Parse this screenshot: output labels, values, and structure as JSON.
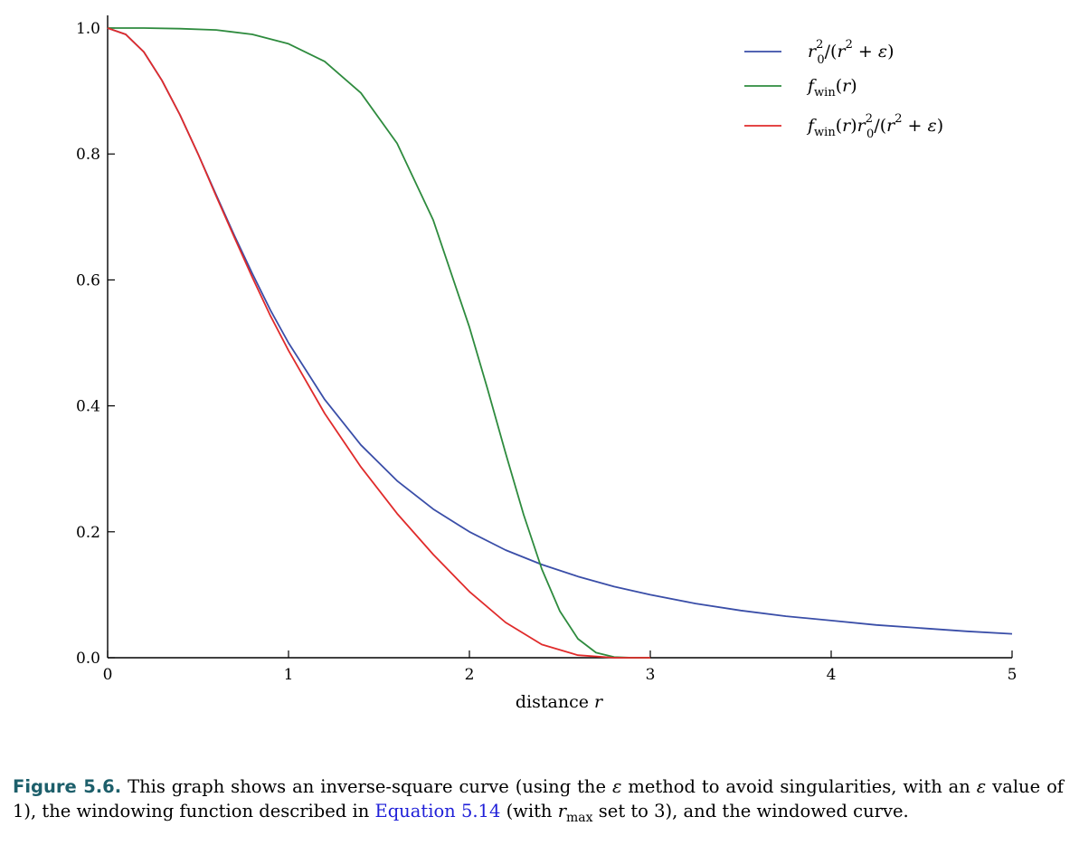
{
  "chart_data": {
    "type": "line",
    "xlabel": "distance r",
    "xlim": [
      0,
      5
    ],
    "ylim": [
      0,
      1.0
    ],
    "xticks": [
      "0",
      "1",
      "2",
      "3",
      "4",
      "5"
    ],
    "yticks": [
      "0.0",
      "0.2",
      "0.4",
      "0.6",
      "0.8",
      "1.0"
    ],
    "legend_position": "top-right",
    "grid": false,
    "series": [
      {
        "name": "r0²/(r² + ε)",
        "color": "#3a4ea8",
        "x": [
          0,
          0.1,
          0.2,
          0.3,
          0.4,
          0.5,
          0.6,
          0.7,
          0.8,
          0.9,
          1.0,
          1.2,
          1.4,
          1.6,
          1.8,
          2.0,
          2.2,
          2.4,
          2.6,
          2.8,
          3.0,
          3.25,
          3.5,
          3.75,
          4.0,
          4.25,
          4.5,
          4.75,
          5.0
        ],
        "y": [
          1.0,
          0.99,
          0.962,
          0.917,
          0.862,
          0.8,
          0.735,
          0.671,
          0.61,
          0.552,
          0.5,
          0.41,
          0.338,
          0.281,
          0.236,
          0.2,
          0.171,
          0.148,
          0.129,
          0.113,
          0.1,
          0.086,
          0.075,
          0.066,
          0.059,
          0.052,
          0.047,
          0.042,
          0.038
        ]
      },
      {
        "name": "f_win(r)",
        "color": "#2e8b3e",
        "x": [
          0,
          0.2,
          0.4,
          0.6,
          0.8,
          1.0,
          1.2,
          1.4,
          1.6,
          1.8,
          2.0,
          2.1,
          2.2,
          2.3,
          2.4,
          2.5,
          2.6,
          2.7,
          2.8,
          2.9,
          3.0
        ],
        "y": [
          1.0,
          1.0,
          0.999,
          0.997,
          0.99,
          0.975,
          0.947,
          0.897,
          0.817,
          0.695,
          0.525,
          0.427,
          0.325,
          0.227,
          0.141,
          0.074,
          0.03,
          0.008,
          0.001,
          0.0,
          0.0
        ]
      },
      {
        "name": "f_win(r)r0²/(r² + ε)",
        "color": "#e02b2b",
        "x": [
          0,
          0.1,
          0.2,
          0.3,
          0.4,
          0.5,
          0.6,
          0.7,
          0.8,
          0.9,
          1.0,
          1.2,
          1.4,
          1.6,
          1.8,
          2.0,
          2.2,
          2.4,
          2.6,
          2.8,
          3.0
        ],
        "y": [
          1.0,
          0.99,
          0.962,
          0.917,
          0.862,
          0.8,
          0.733,
          0.668,
          0.604,
          0.543,
          0.488,
          0.388,
          0.303,
          0.229,
          0.164,
          0.105,
          0.056,
          0.021,
          0.004,
          0.0,
          0.0
        ]
      }
    ]
  },
  "caption": {
    "label": "Figure 5.6.",
    "text_a": "This graph shows an inverse-square curve (using the",
    "epsilon": "ε",
    "text_b": "method to avoid singularities, with an",
    "text_c": "value of 1), the windowing function described in",
    "link": "Equation 5.14",
    "text_d": "(with",
    "rmax_r": "r",
    "rmax_sub": "max",
    "text_e": "set to 3), and the windowed curve."
  }
}
